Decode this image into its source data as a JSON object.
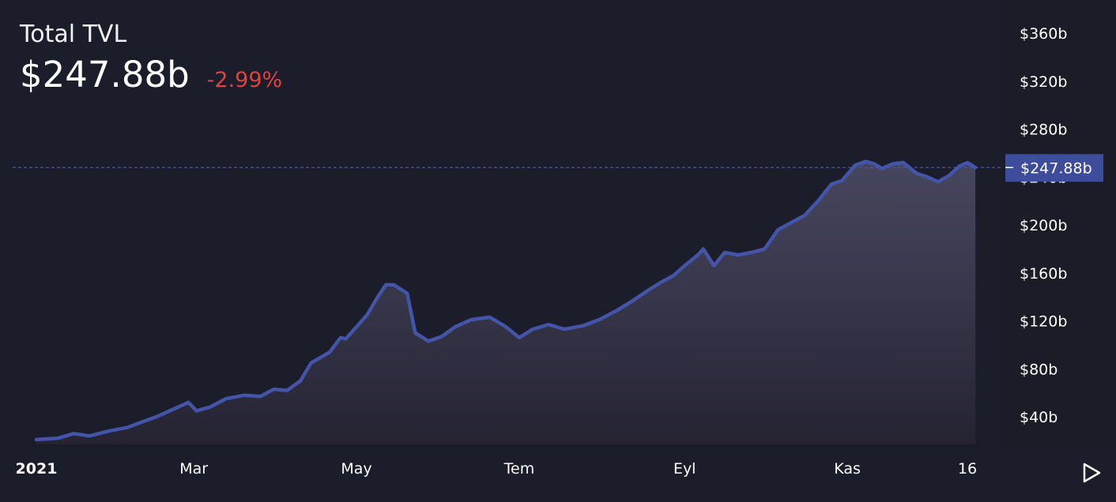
{
  "header": {
    "title": "Total TVL",
    "value": "$247.88b",
    "change": "-2.99%"
  },
  "colors": {
    "background": "#1c1d2a",
    "line": "#4454a9",
    "change_negative": "#e0433f",
    "price_tag": "#3e4c9c"
  },
  "chart_data": {
    "type": "area",
    "xlabel": "",
    "ylabel": "",
    "ylim": [
      0,
      380
    ],
    "y_ticks": [
      {
        "value": 40,
        "label": "$40b"
      },
      {
        "value": 80,
        "label": "$80b"
      },
      {
        "value": 120,
        "label": "$120b"
      },
      {
        "value": 160,
        "label": "$160b"
      },
      {
        "value": 200,
        "label": "$200b"
      },
      {
        "value": 240,
        "label": "$240b"
      },
      {
        "value": 280,
        "label": "$280b"
      },
      {
        "value": 320,
        "label": "$320b"
      },
      {
        "value": 360,
        "label": "$360b"
      }
    ],
    "x_ticks": [
      {
        "date": "2021-01-01",
        "label": "2021"
      },
      {
        "date": "2021-03-01",
        "label": "Mar"
      },
      {
        "date": "2021-05-01",
        "label": "May"
      },
      {
        "date": "2021-07-01",
        "label": "Tem"
      },
      {
        "date": "2021-09-01",
        "label": "Eyl"
      },
      {
        "date": "2021-11-01",
        "label": "Kas"
      },
      {
        "date": "2021-12-16",
        "label": "16"
      }
    ],
    "current": {
      "value": 247.88,
      "label": "$247.88b"
    },
    "grid": false,
    "series": [
      {
        "points": [
          [
            "2021-01-01",
            21
          ],
          [
            "2021-01-09",
            22
          ],
          [
            "2021-01-15",
            26
          ],
          [
            "2021-01-21",
            24
          ],
          [
            "2021-01-28",
            28
          ],
          [
            "2021-02-04",
            31
          ],
          [
            "2021-02-10",
            36
          ],
          [
            "2021-02-15",
            40
          ],
          [
            "2021-02-20",
            45
          ],
          [
            "2021-02-23",
            48
          ],
          [
            "2021-02-27",
            52
          ],
          [
            "2021-03-02",
            45
          ],
          [
            "2021-03-07",
            48
          ],
          [
            "2021-03-13",
            55
          ],
          [
            "2021-03-20",
            58
          ],
          [
            "2021-03-26",
            57
          ],
          [
            "2021-03-31",
            63
          ],
          [
            "2021-04-05",
            62
          ],
          [
            "2021-04-10",
            70
          ],
          [
            "2021-04-14",
            85
          ],
          [
            "2021-04-18",
            90
          ],
          [
            "2021-04-21",
            94
          ],
          [
            "2021-04-25",
            106
          ],
          [
            "2021-04-27",
            105
          ],
          [
            "2021-05-01",
            115
          ],
          [
            "2021-05-05",
            125
          ],
          [
            "2021-05-09",
            140
          ],
          [
            "2021-05-12",
            150
          ],
          [
            "2021-05-15",
            150
          ],
          [
            "2021-05-20",
            143
          ],
          [
            "2021-05-23",
            110
          ],
          [
            "2021-05-28",
            103
          ],
          [
            "2021-06-02",
            107
          ],
          [
            "2021-06-07",
            115
          ],
          [
            "2021-06-13",
            121
          ],
          [
            "2021-06-20",
            123
          ],
          [
            "2021-06-26",
            115
          ],
          [
            "2021-07-01",
            106
          ],
          [
            "2021-07-06",
            113
          ],
          [
            "2021-07-12",
            117
          ],
          [
            "2021-07-18",
            113
          ],
          [
            "2021-07-25",
            116
          ],
          [
            "2021-07-31",
            121
          ],
          [
            "2021-08-06",
            128
          ],
          [
            "2021-08-12",
            136
          ],
          [
            "2021-08-18",
            145
          ],
          [
            "2021-08-23",
            152
          ],
          [
            "2021-08-28",
            158
          ],
          [
            "2021-09-01",
            166
          ],
          [
            "2021-09-06",
            175
          ],
          [
            "2021-09-08",
            180
          ],
          [
            "2021-09-12",
            166
          ],
          [
            "2021-09-16",
            177
          ],
          [
            "2021-09-21",
            175
          ],
          [
            "2021-09-26",
            177
          ],
          [
            "2021-10-01",
            180
          ],
          [
            "2021-10-06",
            196
          ],
          [
            "2021-10-11",
            202
          ],
          [
            "2021-10-16",
            208
          ],
          [
            "2021-10-21",
            220
          ],
          [
            "2021-10-26",
            234
          ],
          [
            "2021-10-30",
            237
          ],
          [
            "2021-11-04",
            250
          ],
          [
            "2021-11-08",
            253
          ],
          [
            "2021-11-11",
            251
          ],
          [
            "2021-11-14",
            247
          ],
          [
            "2021-11-18",
            251
          ],
          [
            "2021-11-22",
            252
          ],
          [
            "2021-11-27",
            243
          ],
          [
            "2021-12-01",
            240
          ],
          [
            "2021-12-05",
            236
          ],
          [
            "2021-12-09",
            241
          ],
          [
            "2021-12-13",
            249
          ],
          [
            "2021-12-16",
            252
          ],
          [
            "2021-12-19",
            247.88
          ]
        ]
      }
    ]
  }
}
